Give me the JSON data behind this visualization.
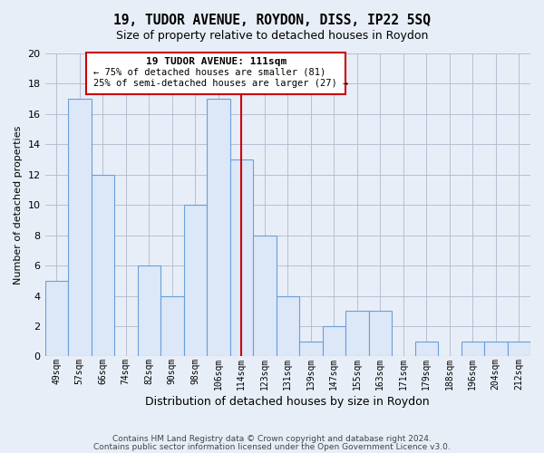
{
  "title": "19, TUDOR AVENUE, ROYDON, DISS, IP22 5SQ",
  "subtitle": "Size of property relative to detached houses in Roydon",
  "xlabel": "Distribution of detached houses by size in Roydon",
  "ylabel": "Number of detached properties",
  "bin_labels": [
    "49sqm",
    "57sqm",
    "66sqm",
    "74sqm",
    "82sqm",
    "90sqm",
    "98sqm",
    "106sqm",
    "114sqm",
    "123sqm",
    "131sqm",
    "139sqm",
    "147sqm",
    "155sqm",
    "163sqm",
    "171sqm",
    "179sqm",
    "188sqm",
    "196sqm",
    "204sqm",
    "212sqm"
  ],
  "bar_values": [
    5,
    17,
    12,
    0,
    6,
    4,
    10,
    17,
    13,
    8,
    4,
    1,
    2,
    3,
    3,
    0,
    1,
    0,
    1,
    1,
    1
  ],
  "bar_color": "#dce8f8",
  "bar_edge_color": "#6a9fd8",
  "vline_x_index": 8,
  "vline_color": "#cc0000",
  "ylim": [
    0,
    20
  ],
  "yticks": [
    0,
    2,
    4,
    6,
    8,
    10,
    12,
    14,
    16,
    18,
    20
  ],
  "annotation_title": "19 TUDOR AVENUE: 111sqm",
  "annotation_line1": "← 75% of detached houses are smaller (81)",
  "annotation_line2": "25% of semi-detached houses are larger (27) →",
  "annotation_box_color": "#ffffff",
  "annotation_box_edge": "#cc0000",
  "footer_line1": "Contains HM Land Registry data © Crown copyright and database right 2024.",
  "footer_line2": "Contains public sector information licensed under the Open Government Licence v3.0.",
  "background_color": "#e8eef8",
  "grid_color": "#b0b8cc"
}
